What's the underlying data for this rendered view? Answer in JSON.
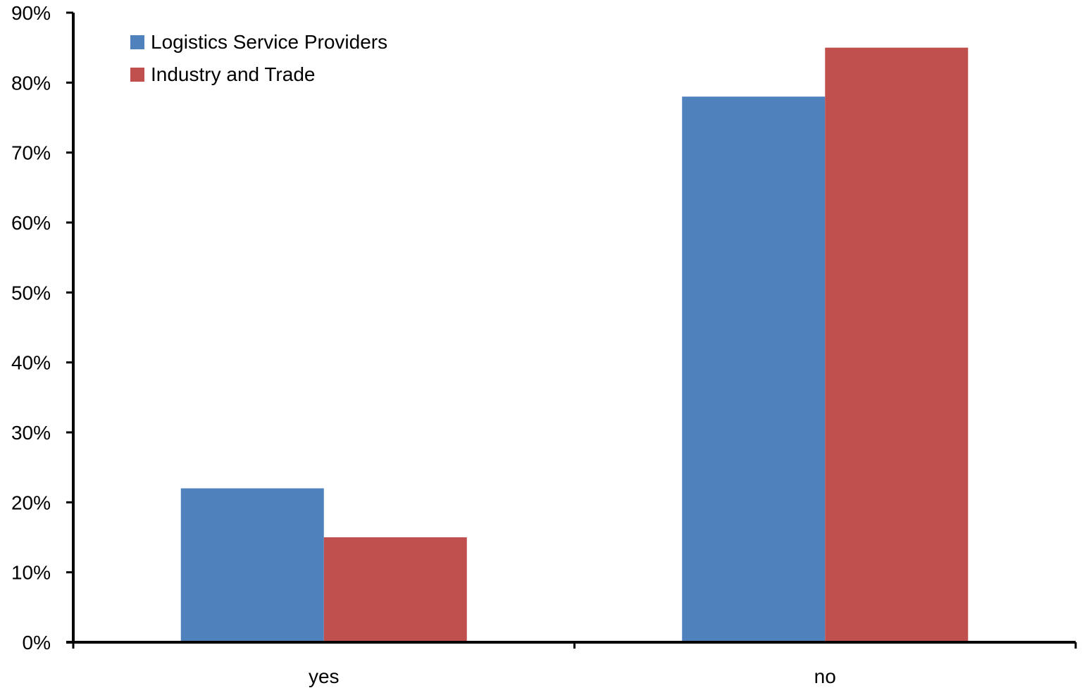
{
  "chart_data": {
    "type": "bar",
    "categories": [
      "yes",
      "no"
    ],
    "series": [
      {
        "name": "Logistics Service Providers",
        "values": [
          22,
          78
        ],
        "color": "#4F81BD"
      },
      {
        "name": "Industry and Trade",
        "values": [
          15,
          85
        ],
        "color": "#C0504D"
      }
    ],
    "ylim": [
      0,
      90
    ],
    "y_ticks": [
      0,
      10,
      20,
      30,
      40,
      50,
      60,
      70,
      80,
      90
    ],
    "y_tick_labels": [
      "0%",
      "10%",
      "20%",
      "30%",
      "40%",
      "50%",
      "60%",
      "70%",
      "80%",
      "90%"
    ],
    "title": "",
    "xlabel": "",
    "ylabel": "",
    "grid": false,
    "legend_position": "top-left"
  }
}
